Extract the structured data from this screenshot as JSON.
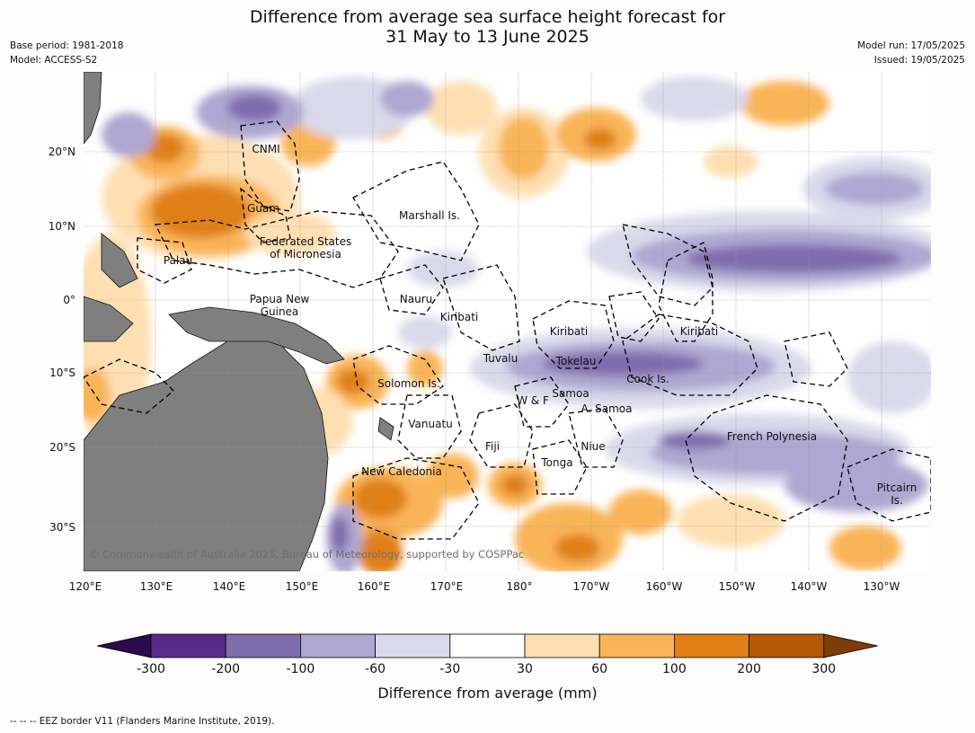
{
  "title_line1": "Difference from average sea surface height forecast for",
  "title_line2": "31 May to 13 June 2025",
  "base_period": "Base period: 1981-2018",
  "model": "Model: ACCESS-S2",
  "model_run": "Model run: 17/05/2025",
  "issued": "Issued: 19/05/2025",
  "longitude_labels": [
    "120°E",
    "130°E",
    "140°E",
    "150°E",
    "160°E",
    "170°E",
    "180°",
    "170°W",
    "160°W",
    "150°W",
    "140°W",
    "130°W"
  ],
  "latitude_labels": [
    "20°N",
    "10°N",
    "0°",
    "10°S",
    "20°S",
    "30°S"
  ],
  "regions": {
    "cnmi": "CNMI",
    "guam": "Guam",
    "marshall": "Marshall Is.",
    "fsm_1": "Federated States",
    "fsm_2": "of Micronesia",
    "palau": "Palau",
    "png_1": "Papua New",
    "png_2": "Guinea",
    "nauru": "Nauru",
    "kiribati_west": "Kiribati",
    "kiribati_central": "Kiribati",
    "kiribati_east": "Kiribati",
    "tuvalu": "Tuvalu",
    "tokelau": "Tokelau",
    "cook": "Cook Is.",
    "solomon": "Solomon Is.",
    "samoa": "Samoa",
    "wf": "W & F",
    "asamoa": "A. Samoa",
    "vanuatu": "Vanuatu",
    "fiji": "Fiji",
    "niue": "Niue",
    "tonga": "Tonga",
    "french_polynesia": "French Polynesia",
    "new_caledonia": "New Caledonia",
    "pitcairn_1": "Pitcairn",
    "pitcairn_2": "Is."
  },
  "copyright": "© Commonwealth of Australia 2025, Bureau of Meteorology, supported by COSPPac",
  "colorbar": {
    "ticks": [
      "-300",
      "-200",
      "-100",
      "-60",
      "-30",
      "30",
      "60",
      "100",
      "200",
      "300"
    ],
    "colors": [
      "#2d0a4e",
      "#5a2a8a",
      "#7f6dad",
      "#aea7d1",
      "#d9d9eb",
      "#ffffff",
      "#fedfb2",
      "#f9b457",
      "#e07f15",
      "#b35806",
      "#7f3b08"
    ],
    "label": "Difference from average (mm)"
  },
  "footer": "--  --  -- EEZ border V11 (Flanders Marine Institute, 2019)."
}
